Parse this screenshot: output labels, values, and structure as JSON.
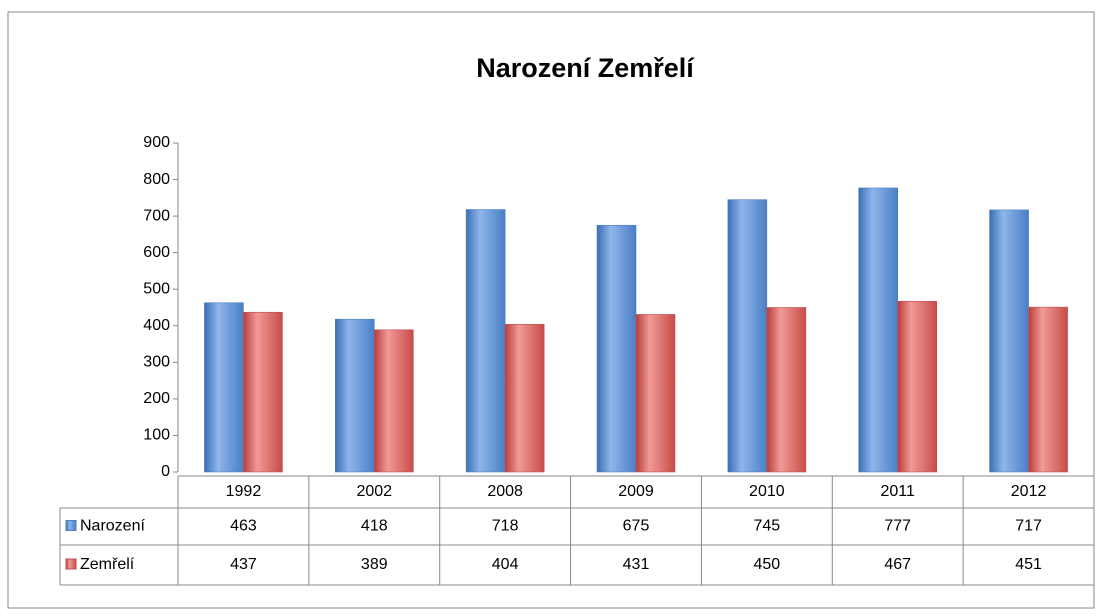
{
  "chart_data": {
    "type": "bar",
    "title": "Narození Zemřelí",
    "categories": [
      "1992",
      "2002",
      "2008",
      "2009",
      "2010",
      "2011",
      "2012"
    ],
    "series": [
      {
        "name": "Narození",
        "color": "#4f81bd",
        "values": [
          463,
          418,
          718,
          675,
          745,
          777,
          717
        ]
      },
      {
        "name": "Zemřelí",
        "color": "#c0504d",
        "values": [
          437,
          389,
          404,
          431,
          450,
          467,
          451
        ]
      }
    ],
    "ylim": [
      0,
      900
    ],
    "yticks": [
      0,
      100,
      200,
      300,
      400,
      500,
      600,
      700,
      800,
      900
    ],
    "data_table": true
  }
}
